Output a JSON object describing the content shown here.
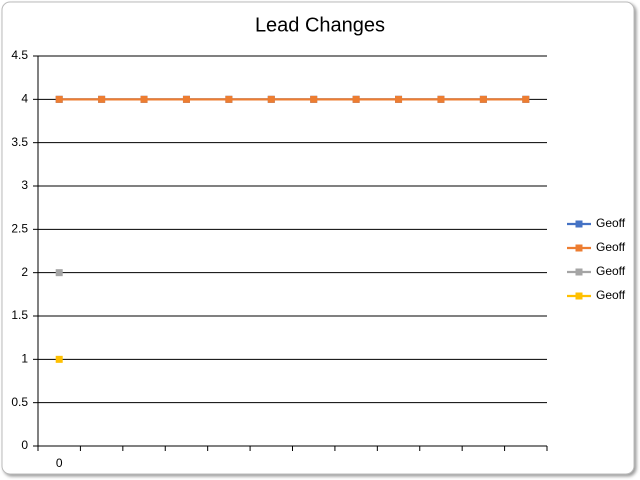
{
  "chart_data": {
    "type": "line",
    "title": "Lead Changes",
    "categories": [
      "0",
      null,
      null,
      null,
      null,
      null,
      null,
      null,
      null,
      null,
      null,
      null
    ],
    "series": [
      {
        "name": "Geoff",
        "color": "#4472c4",
        "values": [
          4,
          4,
          4,
          4,
          4,
          4,
          4,
          4,
          4,
          4,
          4,
          4
        ]
      },
      {
        "name": "Geoff",
        "color": "#ed7d31",
        "values": [
          4,
          4,
          4,
          4,
          4,
          4,
          4,
          4,
          4,
          4,
          4,
          4
        ]
      },
      {
        "name": "Geoff",
        "color": "#a5a5a5",
        "values": [
          2,
          null,
          null,
          null,
          null,
          null,
          null,
          null,
          null,
          null,
          null,
          null
        ]
      },
      {
        "name": "Geoff",
        "color": "#ffc000",
        "values": [
          1,
          null,
          null,
          null,
          null,
          null,
          null,
          null,
          null,
          null,
          null,
          null
        ]
      }
    ],
    "ylim": [
      0,
      4.5
    ],
    "yticks": [
      0,
      0.5,
      1,
      1.5,
      2,
      2.5,
      3,
      3.5,
      4,
      4.5
    ],
    "grid": true,
    "legend": "right"
  }
}
